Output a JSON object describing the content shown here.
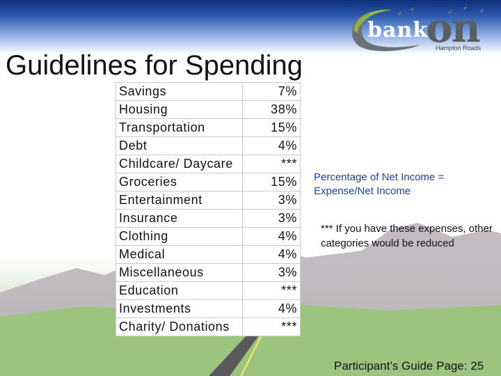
{
  "header": {
    "title": "Guidelines for Spending",
    "logo": {
      "word_bank": "bank",
      "word_on": "on",
      "tagline": "Hampton Roads"
    }
  },
  "table": {
    "rows": [
      {
        "category": "Savings",
        "percent": "7%"
      },
      {
        "category": "Housing",
        "percent": "38%"
      },
      {
        "category": "Transportation",
        "percent": "15%"
      },
      {
        "category": "Debt",
        "percent": "4%"
      },
      {
        "category": "Childcare/ Daycare",
        "percent": "***"
      },
      {
        "category": "Groceries",
        "percent": "15%"
      },
      {
        "category": "Entertainment",
        "percent": "3%"
      },
      {
        "category": "Insurance",
        "percent": "3%"
      },
      {
        "category": "Clothing",
        "percent": "4%"
      },
      {
        "category": "Medical",
        "percent": "4%"
      },
      {
        "category": "Miscellaneous",
        "percent": "3%"
      },
      {
        "category": "Education",
        "percent": "***"
      },
      {
        "category": "Investments",
        "percent": "4%"
      },
      {
        "category": "Charity/ Donations",
        "percent": "***"
      }
    ]
  },
  "notes": {
    "formula": "Percentage of Net Income = Expense/Net Income",
    "asterisk": "*** If you have these expenses, other categories would be reduced"
  },
  "footer": {
    "text": "Participant’s Guide Page: 25"
  },
  "colors": {
    "formula_text": "#1f3ea8",
    "header_band": "#0a2e7a",
    "grass": "#86b46c"
  }
}
